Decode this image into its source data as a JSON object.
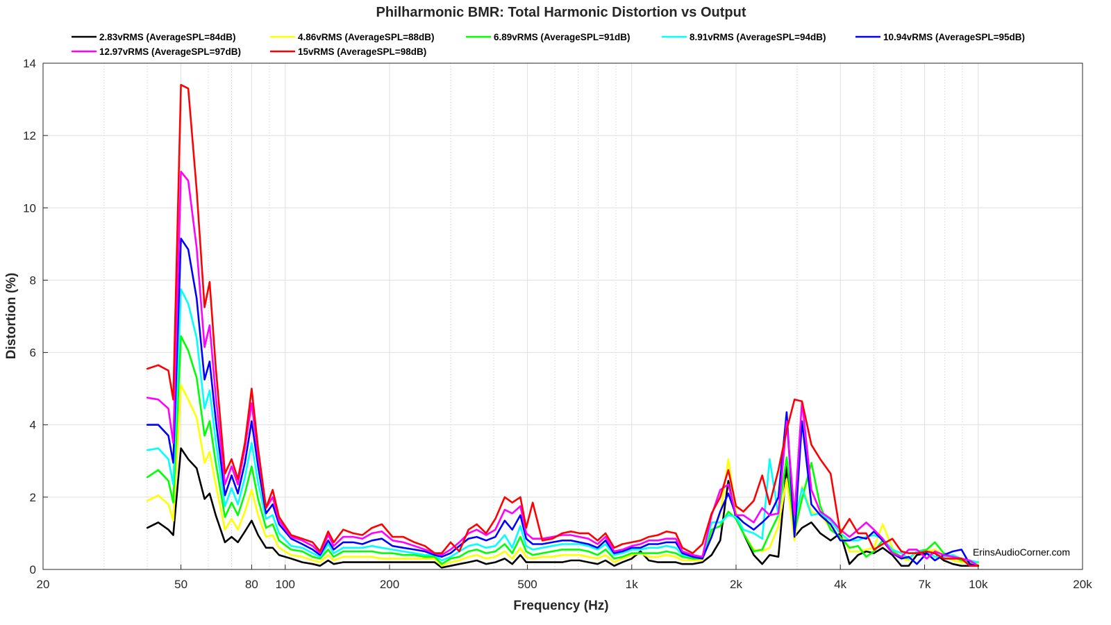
{
  "chart_data": {
    "type": "line",
    "title": "Philharmonic BMR: Total Harmonic Distortion vs Output",
    "xlabel": "Frequency (Hz)",
    "ylabel": "Distortion (%)",
    "xscale": "log",
    "xlim": [
      20,
      20000
    ],
    "ylim": [
      0,
      14
    ],
    "grid": true,
    "legend_location": "top",
    "watermark": "ErinsAudioCorner.com",
    "xticks": [
      {
        "value": 20,
        "label": "20"
      },
      {
        "value": 50,
        "label": "50"
      },
      {
        "value": 80,
        "label": "80"
      },
      {
        "value": 100,
        "label": "100"
      },
      {
        "value": 200,
        "label": "200"
      },
      {
        "value": 500,
        "label": "500"
      },
      {
        "value": 1000,
        "label": "1k"
      },
      {
        "value": 2000,
        "label": "2k"
      },
      {
        "value": 4000,
        "label": "4k"
      },
      {
        "value": 7000,
        "label": "7k"
      },
      {
        "value": 10000,
        "label": "10k"
      },
      {
        "value": 20000,
        "label": "20k"
      }
    ],
    "yticks": [
      0,
      2,
      4,
      6,
      8,
      10,
      12,
      14
    ],
    "x": [
      40,
      43,
      46,
      47.5,
      50,
      52.5,
      55.5,
      58.5,
      60.5,
      63,
      67,
      70,
      73,
      76.5,
      80,
      83.5,
      88,
      92,
      96,
      104,
      112,
      120,
      126,
      133,
      138,
      147,
      157,
      167,
      178,
      190,
      204,
      219,
      236,
      253,
      270,
      283,
      300,
      318,
      338,
      357,
      380,
      404,
      430,
      452,
      477,
      496,
      518,
      552,
      590,
      630,
      668,
      707,
      750,
      797,
      840,
      890,
      940,
      1000,
      1060,
      1120,
      1190,
      1260,
      1340,
      1400,
      1500,
      1600,
      1700,
      1800,
      1900,
      2000,
      2100,
      2250,
      2380,
      2500,
      2650,
      2800,
      2950,
      3100,
      3300,
      3500,
      3750,
      4000,
      4250,
      4500,
      4750,
      5000,
      5300,
      5650,
      6000,
      6300,
      6650,
      7100,
      7500,
      7950,
      8450,
      8950,
      9450,
      10000
    ],
    "series": [
      {
        "name": "2.83vRMS (AverageSPL=84dB)",
        "color": "#000000",
        "values": [
          1.15,
          1.3,
          1.1,
          0.95,
          3.35,
          3.05,
          2.8,
          1.95,
          2.1,
          1.5,
          0.75,
          0.9,
          0.75,
          1.05,
          1.35,
          0.95,
          0.6,
          0.6,
          0.4,
          0.3,
          0.2,
          0.15,
          0.1,
          0.25,
          0.15,
          0.2,
          0.2,
          0.2,
          0.2,
          0.2,
          0.2,
          0.2,
          0.2,
          0.2,
          0.2,
          0.05,
          0.1,
          0.15,
          0.2,
          0.25,
          0.15,
          0.2,
          0.3,
          0.15,
          0.4,
          0.2,
          0.2,
          0.2,
          0.2,
          0.2,
          0.25,
          0.25,
          0.2,
          0.15,
          0.25,
          0.1,
          0.2,
          0.3,
          0.5,
          0.25,
          0.2,
          0.2,
          0.2,
          0.15,
          0.15,
          0.2,
          0.4,
          0.8,
          2.45,
          1.4,
          1.0,
          0.4,
          0.15,
          0.4,
          0.35,
          2.85,
          0.9,
          1.15,
          1.3,
          1.0,
          0.8,
          1.0,
          0.15,
          0.4,
          0.5,
          0.45,
          0.6,
          0.4,
          0.1,
          0.1,
          0.4,
          0.45,
          0.45,
          0.25,
          0.15,
          0.1,
          0.1,
          0.1
        ]
      },
      {
        "name": "4.86vRMS (AverageSPL=88dB)",
        "color": "#ffff00",
        "values": [
          1.9,
          2.05,
          1.8,
          1.35,
          5.1,
          4.7,
          4.2,
          2.95,
          3.25,
          2.35,
          1.1,
          1.4,
          1.1,
          1.6,
          2.2,
          1.5,
          0.9,
          0.95,
          0.6,
          0.4,
          0.35,
          0.25,
          0.2,
          0.4,
          0.25,
          0.35,
          0.35,
          0.35,
          0.35,
          0.3,
          0.3,
          0.3,
          0.3,
          0.3,
          0.3,
          0.1,
          0.2,
          0.25,
          0.35,
          0.4,
          0.3,
          0.35,
          0.5,
          0.3,
          0.6,
          0.35,
          0.3,
          0.35,
          0.35,
          0.4,
          0.4,
          0.4,
          0.35,
          0.3,
          0.4,
          0.2,
          0.3,
          0.4,
          0.45,
          0.35,
          0.35,
          0.4,
          0.35,
          0.25,
          0.25,
          0.25,
          1.0,
          1.5,
          3.05,
          1.6,
          1.0,
          0.55,
          0.5,
          0.6,
          1.2,
          2.5,
          0.8,
          2.3,
          1.6,
          1.5,
          1.15,
          1.15,
          0.5,
          0.5,
          0.55,
          0.6,
          1.25,
          0.6,
          0.3,
          0.25,
          0.5,
          0.5,
          0.55,
          0.4,
          0.25,
          0.2,
          0.2,
          0.15
        ]
      },
      {
        "name": "6.89vRMS (AverageSPL=91dB)",
        "color": "#00ff00",
        "values": [
          2.55,
          2.75,
          2.45,
          1.85,
          6.45,
          6.05,
          5.3,
          3.7,
          4.1,
          2.95,
          1.45,
          1.85,
          1.5,
          2.1,
          2.85,
          1.95,
          1.15,
          1.25,
          0.8,
          0.55,
          0.5,
          0.35,
          0.3,
          0.55,
          0.35,
          0.5,
          0.5,
          0.5,
          0.5,
          0.45,
          0.45,
          0.4,
          0.4,
          0.35,
          0.35,
          0.15,
          0.3,
          0.35,
          0.5,
          0.55,
          0.45,
          0.5,
          0.7,
          0.45,
          0.9,
          0.5,
          0.4,
          0.45,
          0.5,
          0.55,
          0.55,
          0.55,
          0.5,
          0.4,
          0.55,
          0.3,
          0.35,
          0.45,
          0.45,
          0.45,
          0.45,
          0.5,
          0.45,
          0.35,
          0.3,
          0.3,
          1.1,
          1.2,
          1.6,
          1.4,
          1.0,
          0.5,
          0.55,
          1.0,
          1.5,
          3.1,
          1.05,
          1.95,
          2.95,
          1.75,
          1.1,
          0.9,
          0.6,
          0.65,
          0.35,
          0.5,
          0.8,
          0.5,
          0.35,
          0.3,
          0.5,
          0.55,
          0.75,
          0.45,
          0.35,
          0.25,
          0.2,
          0.2
        ]
      },
      {
        "name": "8.91vRMS (AverageSPL=94dB)",
        "color": "#00ffff",
        "values": [
          3.3,
          3.35,
          3.05,
          2.35,
          7.75,
          7.35,
          6.4,
          4.45,
          4.95,
          3.55,
          1.75,
          2.25,
          1.8,
          2.55,
          3.5,
          2.4,
          1.4,
          1.5,
          1.0,
          0.65,
          0.6,
          0.45,
          0.35,
          0.7,
          0.45,
          0.6,
          0.6,
          0.6,
          0.65,
          0.6,
          0.55,
          0.5,
          0.45,
          0.4,
          0.4,
          0.25,
          0.35,
          0.5,
          0.65,
          0.7,
          0.6,
          0.65,
          0.95,
          0.6,
          1.2,
          0.65,
          0.55,
          0.6,
          0.65,
          0.7,
          0.7,
          0.7,
          0.65,
          0.55,
          0.7,
          0.4,
          0.45,
          0.55,
          0.55,
          0.6,
          0.6,
          0.65,
          0.6,
          0.4,
          0.35,
          0.35,
          1.3,
          1.3,
          1.5,
          1.45,
          1.1,
          1.0,
          0.85,
          3.05,
          1.5,
          4.05,
          1.3,
          2.25,
          1.5,
          1.55,
          1.35,
          1.0,
          0.8,
          0.8,
          0.9,
          0.95,
          0.85,
          0.55,
          0.45,
          0.3,
          0.5,
          0.5,
          0.35,
          0.35,
          0.4,
          0.3,
          0.25,
          0.2
        ]
      },
      {
        "name": "10.94vRMS (AverageSPL=95dB)",
        "color": "#0000ff",
        "values": [
          4.0,
          4.0,
          3.7,
          2.95,
          9.15,
          8.85,
          7.5,
          5.25,
          5.75,
          4.15,
          2.05,
          2.6,
          2.1,
          2.95,
          4.1,
          2.85,
          1.55,
          1.8,
          1.25,
          0.85,
          0.7,
          0.55,
          0.4,
          0.8,
          0.55,
          0.75,
          0.75,
          0.7,
          0.8,
          0.85,
          0.65,
          0.6,
          0.55,
          0.5,
          0.4,
          0.35,
          0.45,
          0.65,
          0.85,
          0.9,
          0.8,
          0.9,
          1.35,
          1.1,
          1.5,
          0.85,
          0.7,
          0.7,
          0.75,
          0.8,
          0.8,
          0.75,
          0.7,
          0.6,
          0.8,
          0.45,
          0.5,
          0.6,
          0.6,
          0.7,
          0.7,
          0.75,
          0.75,
          0.45,
          0.35,
          0.3,
          0.9,
          1.6,
          2.1,
          1.5,
          1.3,
          1.1,
          1.3,
          1.5,
          2.0,
          4.35,
          0.9,
          4.1,
          1.8,
          1.5,
          1.25,
          0.8,
          0.8,
          0.9,
          0.85,
          1.05,
          0.8,
          0.45,
          0.3,
          0.35,
          0.15,
          0.45,
          0.25,
          0.4,
          0.5,
          0.55,
          0.15,
          0.1
        ]
      },
      {
        "name": "12.97vRMS (AverageSPL=97dB)",
        "color": "#ff00ff",
        "values": [
          4.75,
          4.7,
          4.45,
          3.5,
          11.0,
          10.75,
          8.9,
          6.15,
          6.75,
          4.8,
          2.35,
          2.85,
          2.35,
          3.35,
          4.6,
          3.15,
          1.7,
          2.0,
          1.35,
          0.9,
          0.8,
          0.65,
          0.45,
          0.95,
          0.65,
          0.9,
          0.9,
          0.85,
          1.0,
          1.05,
          0.8,
          0.75,
          0.65,
          0.55,
          0.45,
          0.4,
          0.55,
          0.75,
          1.0,
          1.1,
          0.95,
          1.1,
          1.65,
          1.55,
          1.75,
          1.0,
          0.85,
          0.85,
          0.9,
          0.95,
          0.95,
          0.9,
          0.85,
          0.7,
          0.9,
          0.5,
          0.55,
          0.65,
          0.7,
          0.8,
          0.8,
          0.85,
          0.85,
          0.5,
          0.4,
          0.35,
          1.5,
          2.2,
          2.35,
          1.5,
          1.5,
          1.3,
          1.7,
          1.5,
          1.55,
          4.1,
          1.5,
          4.65,
          2.2,
          1.6,
          1.4,
          1.1,
          0.9,
          1.1,
          1.3,
          1.1,
          0.85,
          0.45,
          0.35,
          0.55,
          0.55,
          0.3,
          0.5,
          0.4,
          0.35,
          0.3,
          0.25,
          0.1
        ]
      },
      {
        "name": "15vRMS (AverageSPL=98dB)",
        "color": "#ff0000",
        "values": [
          5.55,
          5.65,
          5.5,
          4.7,
          13.4,
          13.3,
          10.5,
          7.25,
          7.95,
          5.6,
          2.65,
          3.05,
          2.5,
          3.5,
          5.0,
          3.35,
          1.7,
          2.2,
          1.45,
          0.95,
          0.85,
          0.75,
          0.5,
          1.05,
          0.75,
          1.1,
          1.0,
          0.95,
          1.15,
          1.25,
          0.9,
          0.9,
          0.75,
          0.65,
          0.45,
          0.45,
          0.75,
          0.5,
          1.1,
          1.25,
          1.0,
          1.4,
          2.0,
          1.85,
          2.0,
          1.15,
          1.85,
          0.8,
          0.85,
          1.0,
          1.05,
          1.0,
          1.0,
          0.8,
          1.0,
          0.6,
          0.7,
          0.75,
          0.8,
          0.9,
          0.95,
          1.05,
          1.0,
          0.6,
          0.45,
          0.7,
          1.55,
          2.0,
          2.75,
          1.75,
          1.6,
          1.9,
          2.6,
          1.8,
          2.75,
          3.85,
          4.7,
          4.65,
          3.45,
          3.05,
          2.65,
          1.0,
          1.4,
          1.0,
          1.0,
          0.55,
          0.7,
          0.85,
          0.5,
          0.45,
          0.45,
          0.5,
          0.45,
          0.3,
          0.3,
          0.3,
          0.1,
          0.1
        ]
      }
    ]
  }
}
